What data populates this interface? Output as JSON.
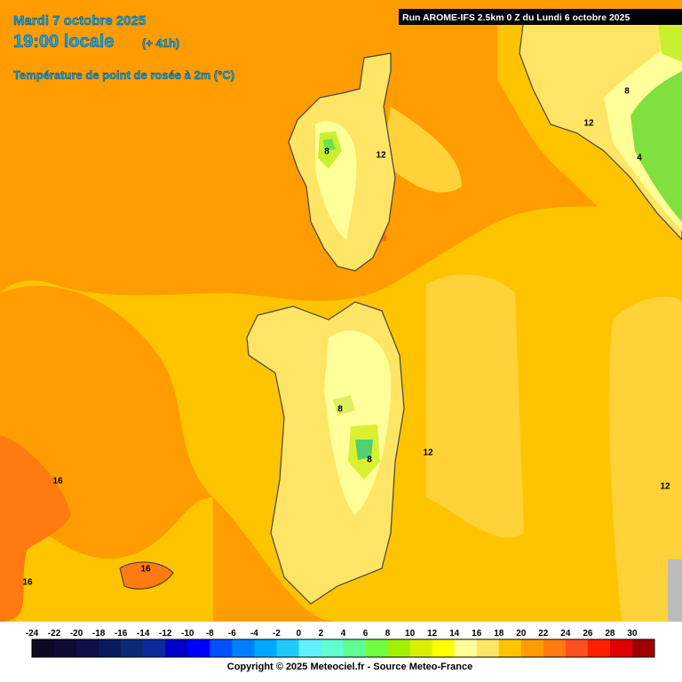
{
  "header": {
    "date": "Mardi 7 octobre 2025",
    "time": "19:00 locale",
    "lead": "(+ 41h)",
    "parameter": "Température de point de rosée à 2m (°C)",
    "run": "Run AROME-IFS 2.5km 0 Z du Lundi 6 octobre 2025"
  },
  "contour_labels": [
    "12",
    "8",
    "12",
    "8",
    "4",
    "8",
    "8",
    "12",
    "12",
    "16",
    "16",
    "16"
  ],
  "legend": {
    "labels": [
      -24,
      -22,
      -20,
      -18,
      -16,
      -14,
      -12,
      -10,
      -8,
      -6,
      -4,
      -2,
      0,
      2,
      4,
      6,
      8,
      10,
      12,
      14,
      16,
      18,
      20,
      22,
      24,
      26,
      28,
      30
    ],
    "colors": [
      "#0a0a20",
      "#0c0c34",
      "#0e0e48",
      "#0a1a5c",
      "#0a2a78",
      "#0a2a9c",
      "#0000c8",
      "#0000ff",
      "#0050ff",
      "#0080ff",
      "#00a8ff",
      "#20c8ff",
      "#60f0ff",
      "#60ffd0",
      "#60ff90",
      "#70ff40",
      "#a0f000",
      "#d8f000",
      "#ffff00",
      "#ffff99",
      "#ffe566",
      "#ffc400",
      "#ff9c00",
      "#ff7a10",
      "#ff5020",
      "#ff2000",
      "#e00000",
      "#a00000"
    ]
  },
  "footer": {
    "copyright": "Copyright © 2025 Meteociel.fr - Source Meteo-France"
  }
}
